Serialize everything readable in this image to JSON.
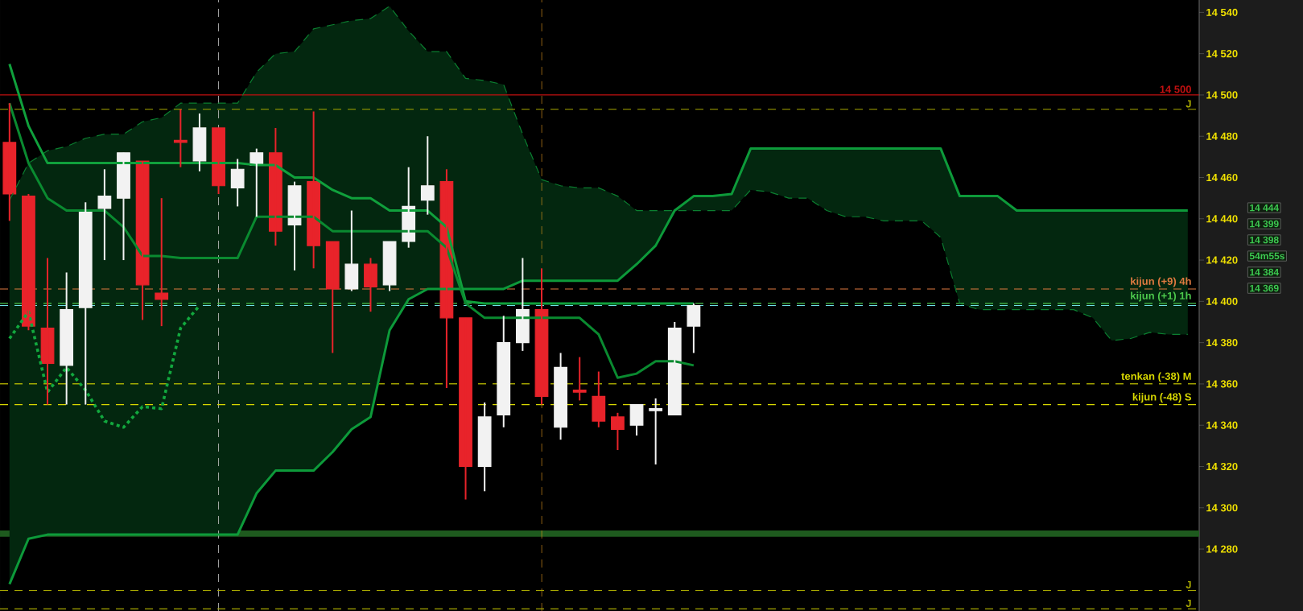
{
  "chart_data": {
    "type": "candlestick",
    "categories": [
      null,
      null,
      null,
      null,
      null,
      null,
      null,
      null,
      null,
      null,
      null,
      null,
      null,
      null,
      null,
      null,
      null,
      null,
      null,
      null,
      null,
      null,
      null,
      null,
      null,
      null,
      null,
      null,
      null,
      null,
      null,
      null,
      null,
      null,
      null,
      null,
      null,
      null,
      null,
      null,
      null,
      null,
      null,
      null,
      null,
      null,
      null,
      null,
      null,
      null,
      null,
      null,
      null,
      null,
      null,
      null,
      null,
      null,
      null,
      null,
      null,
      null,
      null
    ],
    "ohlc": [
      [
        14477,
        14496,
        14439,
        14452
      ],
      [
        14451,
        14452,
        14386,
        14388
      ],
      [
        14387,
        14421,
        14350,
        14370
      ],
      [
        14369,
        14414,
        14350,
        14396
      ],
      [
        14397,
        14448,
        14350,
        14444
      ],
      [
        14445,
        14464,
        14420,
        14451
      ],
      [
        14450,
        14472,
        14420,
        14472
      ],
      [
        14468,
        14468,
        14391,
        14408
      ],
      [
        14404,
        14450,
        14388,
        14401
      ],
      [
        14478,
        14493,
        14465,
        14477
      ],
      [
        14468,
        14491,
        14463,
        14484
      ],
      [
        14484,
        14484,
        14452,
        14456
      ],
      [
        14455,
        14469,
        14446,
        14464
      ],
      [
        14466,
        14474,
        14441,
        14472
      ],
      [
        14472,
        14484,
        14427,
        14434
      ],
      [
        14437,
        14458,
        14415,
        14456
      ],
      [
        14458,
        14492,
        14416,
        14427
      ],
      [
        14429,
        14429,
        14375,
        14406
      ],
      [
        14406,
        14444,
        14405,
        14418
      ],
      [
        14418,
        14421,
        14395,
        14407
      ],
      [
        14408,
        14429,
        14405,
        14429
      ],
      [
        14429,
        14465,
        14426,
        14446
      ],
      [
        14449,
        14480,
        14442,
        14456
      ],
      [
        14458,
        14464,
        14358,
        14392
      ],
      [
        14392,
        14392,
        14304,
        14320
      ],
      [
        14320,
        14351,
        14308,
        14344
      ],
      [
        14345,
        14393,
        14339,
        14380
      ],
      [
        14380,
        14421,
        14376,
        14396
      ],
      [
        14396,
        14416,
        14350,
        14354
      ],
      [
        14339,
        14375,
        14333,
        14368
      ],
      [
        14357,
        14373,
        14352,
        14356
      ],
      [
        14354,
        14366,
        14339,
        14342
      ],
      [
        14344,
        14346,
        14328,
        14338
      ],
      [
        14340,
        14350,
        14335,
        14350
      ],
      [
        14347,
        14353,
        14321,
        14348
      ],
      [
        14345,
        14390,
        14345,
        14387
      ],
      [
        14388,
        14399,
        14375,
        14398
      ],
      null,
      null,
      null,
      null,
      null,
      null,
      null,
      null,
      null,
      null,
      null,
      null,
      null,
      null,
      null,
      null,
      null,
      null,
      null,
      null,
      null,
      null,
      null,
      null,
      null,
      null
    ],
    "colors": [
      "#e8232a",
      "#e8232a",
      "#e8232a",
      "#f2f2f2",
      "#f2f2f2",
      "#f2f2f2",
      "#f2f2f2",
      "#e8232a",
      "#e8232a",
      "#e8232a",
      "#f2f2f2",
      "#e8232a",
      "#f2f2f2",
      "#f2f2f2",
      "#e8232a",
      "#f2f2f2",
      "#e8232a",
      "#e8232a",
      "#f2f2f2",
      "#e8232a",
      "#f2f2f2",
      "#f2f2f2",
      "#f2f2f2",
      "#e8232a",
      "#e8232a",
      "#f2f2f2",
      "#f2f2f2",
      "#f2f2f2",
      "#e8232a",
      "#f2f2f2",
      "#e8232a",
      "#e8232a",
      "#e8232a",
      "#f2f2f2",
      "#f2f2f2",
      "#f2f2f2",
      "#f2f2f2",
      null,
      null,
      null,
      null,
      null,
      null,
      null,
      null,
      null,
      null,
      null,
      null,
      null,
      null,
      null,
      null,
      null,
      null,
      null,
      null,
      null,
      null,
      null,
      null,
      null,
      null
    ],
    "series": [
      {
        "type": "line",
        "color": "#0d9a3a",
        "line_style": "solid",
        "lower": [
          14263,
          14285,
          14287,
          14287,
          14287,
          14287,
          14287,
          14287,
          14287,
          14287,
          14287,
          14287,
          14287,
          14307,
          14318,
          14318,
          14318,
          14327,
          14338,
          14344,
          14386,
          14401,
          14406,
          14406,
          14406,
          14406,
          14406,
          14410,
          14410,
          14410,
          14410,
          14410,
          14410,
          14418,
          14427,
          14444,
          14444,
          14444,
          14444,
          14454,
          14453,
          14450,
          14450,
          14444,
          14441,
          14441,
          14439,
          14439,
          14439,
          14431,
          14399,
          14396,
          14396,
          14396,
          14396,
          14396,
          14396,
          14392,
          14381,
          14382,
          14385,
          14384,
          14384
        ],
        "upper": [
          14449,
          14467,
          14473,
          14475,
          14479,
          14481,
          14481,
          14487,
          14489,
          14496,
          14496,
          14496,
          14496,
          14511,
          14520,
          14521,
          14532,
          14534,
          14536,
          14537,
          14543,
          14531,
          14521,
          14521,
          14508,
          14507,
          14505,
          14481,
          14459,
          14456,
          14455,
          14455,
          14451,
          14444,
          14444,
          14444,
          14451,
          14451,
          14452,
          14474,
          14474,
          14474,
          14474,
          14474,
          14474,
          14474,
          14474,
          14474,
          14474,
          14474,
          14451,
          14451,
          14451,
          14444,
          14444,
          14444,
          14444,
          14444,
          14444,
          14444,
          14444,
          14444,
          14444
        ],
        "values": [
          14263,
          14285,
          14287,
          14287,
          14287,
          14287,
          14287,
          14287,
          14287,
          14287,
          14287,
          14287,
          14287,
          14307,
          14318,
          14318,
          14318,
          14327,
          14338,
          14344,
          14386,
          14401,
          14406,
          14406,
          14406,
          14406,
          14406,
          14410,
          14410,
          14410,
          14410,
          14410,
          14410,
          14418,
          14427,
          14444,
          14451,
          14451,
          14452,
          14474,
          14474,
          14474,
          14474,
          14474,
          14474,
          14474,
          14474,
          14474,
          14474,
          14474,
          14451,
          14451,
          14451,
          14444,
          14444,
          14444,
          14444,
          14444,
          14444,
          14444,
          14444,
          14444,
          14444
        ]
      },
      {
        "type": "line",
        "color": "#0b7f30",
        "line_style": "dashed",
        "values": [
          14449,
          14467,
          14473,
          14475,
          14479,
          14481,
          14481,
          14487,
          14489,
          14496,
          14496,
          14496,
          14496,
          14511,
          14520,
          14521,
          14532,
          14534,
          14536,
          14537,
          14543,
          14531,
          14521,
          14521,
          14508,
          14507,
          14505,
          14481,
          14459,
          14456,
          14455,
          14455,
          14451,
          14444,
          14444,
          14444,
          14444,
          14444,
          14444,
          14454,
          14453,
          14450,
          14450,
          14444,
          14441,
          14441,
          14439,
          14439,
          14439,
          14431,
          14399,
          14396,
          14396,
          14396,
          14396,
          14396,
          14396,
          14392,
          14381,
          14382,
          14385,
          14384,
          14384
        ]
      },
      {
        "type": "line",
        "color": "#10a03c",
        "line_style": "solid",
        "values": [
          14515,
          14485,
          14467,
          14467,
          14467,
          14467,
          14467,
          14467,
          14467,
          14467,
          14467,
          14467,
          14467,
          14466,
          14466,
          14460,
          14460,
          14454,
          14450,
          14450,
          14444,
          14444,
          14444,
          14436,
          14400,
          14399,
          14399,
          14399,
          14399,
          14399,
          14399,
          14399,
          14399,
          14399,
          14399,
          14399,
          14399,
          null,
          null,
          null,
          null,
          null,
          null,
          null,
          null,
          null,
          null,
          null,
          null,
          null,
          null,
          null,
          null,
          null,
          null,
          null,
          null,
          null,
          null,
          null,
          null,
          null,
          null
        ]
      },
      {
        "type": "line",
        "color": "#0a8a30",
        "line_style": "solid",
        "values": [
          14496,
          14467,
          14450,
          14444,
          14444,
          14444,
          14436,
          14422,
          14422,
          14421,
          14421,
          14421,
          14421,
          14441,
          14441,
          14441,
          14441,
          14434,
          14434,
          14434,
          14434,
          14434,
          14434,
          14426,
          14399,
          14392,
          14392,
          14392,
          14392,
          14392,
          14392,
          14384,
          14363,
          14365,
          14371,
          14371,
          14369,
          null,
          null,
          null,
          null,
          null,
          null,
          null,
          null,
          null,
          null,
          null,
          null,
          null,
          null,
          null,
          null,
          null,
          null,
          null,
          null,
          null,
          null,
          null,
          null,
          null,
          null
        ]
      },
      {
        "type": "line",
        "color": "#12a83e",
        "line_style": "dotted",
        "values": [
          14382,
          14395,
          14356,
          14368,
          14357,
          14342,
          14339,
          14349,
          14348,
          14387,
          14398,
          null,
          null,
          null,
          null,
          null,
          null,
          null,
          null,
          null,
          null,
          null,
          null,
          null,
          null,
          null,
          null,
          null,
          null,
          null,
          null,
          null,
          null,
          null,
          null,
          null,
          null,
          null,
          null,
          null,
          null,
          null,
          null,
          null,
          null,
          null,
          null,
          null,
          null,
          null,
          null,
          null,
          null,
          null,
          null,
          null,
          null,
          null,
          null,
          null,
          null,
          null,
          null
        ]
      }
    ],
    "ylim": [
      14250,
      14546
    ],
    "yticks": [
      {
        "value": 14280,
        "label": "14 280"
      },
      {
        "value": 14300,
        "label": "14 300"
      },
      {
        "value": 14320,
        "label": "14 320"
      },
      {
        "value": 14340,
        "label": "14 340"
      },
      {
        "value": 14360,
        "label": "14 360"
      },
      {
        "value": 14380,
        "label": "14 380"
      },
      {
        "value": 14400,
        "label": "14 400"
      },
      {
        "value": 14420,
        "label": "14 420"
      },
      {
        "value": 14440,
        "label": "14 440"
      },
      {
        "value": 14460,
        "label": "14 460"
      },
      {
        "value": 14480,
        "label": "14 480"
      },
      {
        "value": 14500,
        "label": "14 500"
      },
      {
        "value": 14520,
        "label": "14 520"
      },
      {
        "value": 14540,
        "label": "14 540"
      }
    ],
    "ref_lines": [
      {
        "axis": "y",
        "value": 14500,
        "label": "14 500",
        "color": "#c01010",
        "line_style": "solid"
      },
      {
        "axis": "y",
        "value": 14493,
        "label": "J",
        "color": "#a8a800",
        "line_style": "dashed"
      },
      {
        "axis": "y",
        "value": 14406,
        "label": "kijun (+9) 4h",
        "color": "#e07a40",
        "line_style": "dashed"
      },
      {
        "axis": "y",
        "value": 14399,
        "label": "kijun (+1) 1h",
        "color": "#4cc84c",
        "line_style": "dashed"
      },
      {
        "axis": "y",
        "value": 14398,
        "color": "#70e0e8",
        "line_style": "dashed"
      },
      {
        "axis": "y",
        "value": 14360,
        "label": "tenkan (-38) M",
        "color": "#d8d800",
        "line_style": "dashed"
      },
      {
        "axis": "y",
        "value": 14350,
        "label": "kijun (-48) S",
        "color": "#d8d800",
        "line_style": "dashed"
      },
      {
        "axis": "y",
        "value": 14260,
        "label": "J",
        "color": "#a8a800",
        "line_style": "dashed"
      },
      {
        "axis": "y",
        "value": 14251,
        "label": "J",
        "color": "#a8a800",
        "line_style": "dashed"
      }
    ],
    "bands": [
      {
        "axis": "y",
        "from": 14286,
        "to": 14289,
        "color": "#1e5a1e"
      }
    ],
    "annotations": [
      "14 444",
      "14 399",
      "14 398",
      "54m55s",
      "14 384",
      "14 369"
    ]
  }
}
